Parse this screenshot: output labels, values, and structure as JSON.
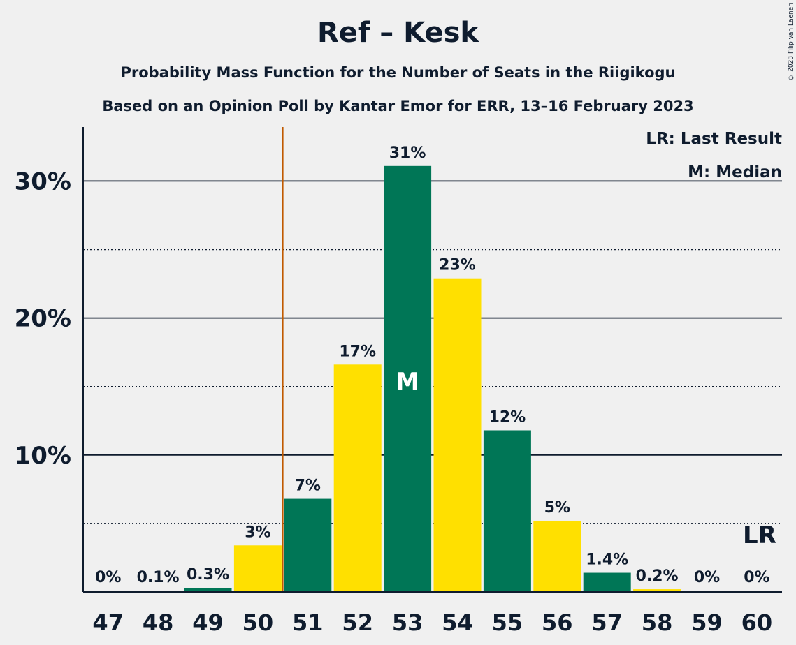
{
  "title": "Ref – Kesk",
  "subtitle": "Probability Mass Function for the Number of Seats in the Riigikogu",
  "subtitle2": "Based on an Opinion Poll by Kantar Emor for ERR, 13–16 February 2023",
  "copyright": "© 2023 Filip van Laenen",
  "legend": {
    "lr": "LR: Last Result",
    "median": "M: Median"
  },
  "colors": {
    "green": "#007656",
    "yellow": "#ffe000",
    "lr_line": "#c05a00",
    "text": "#0f1c2e"
  },
  "chart_data": {
    "type": "bar",
    "categories": [
      "47",
      "48",
      "49",
      "50",
      "51",
      "52",
      "53",
      "54",
      "55",
      "56",
      "57",
      "58",
      "59",
      "60"
    ],
    "values": [
      0,
      0.1,
      0.3,
      3.4,
      6.8,
      16.6,
      31.1,
      22.9,
      11.8,
      5.2,
      1.4,
      0.2,
      0,
      0
    ],
    "labels": [
      "0%",
      "0.1%",
      "0.3%",
      "3%",
      "7%",
      "17%",
      "31%",
      "23%",
      "12%",
      "5%",
      "1.4%",
      "0.2%",
      "0%",
      "0%"
    ],
    "bar_colors": [
      "green",
      "yellow",
      "green",
      "yellow",
      "green",
      "yellow",
      "green",
      "yellow",
      "green",
      "yellow",
      "green",
      "yellow",
      "green",
      "yellow"
    ],
    "yticks": [
      10,
      20,
      30
    ],
    "ytick_labels": [
      "10%",
      "20%",
      "30%"
    ],
    "minor_gridlines": [
      5,
      15,
      25
    ],
    "ylim": [
      0,
      34
    ],
    "median_seat": "53",
    "median_marker": "M",
    "last_result_seat": "60",
    "last_result_marker": "LR",
    "lr_line_between": [
      "50",
      "51"
    ]
  }
}
